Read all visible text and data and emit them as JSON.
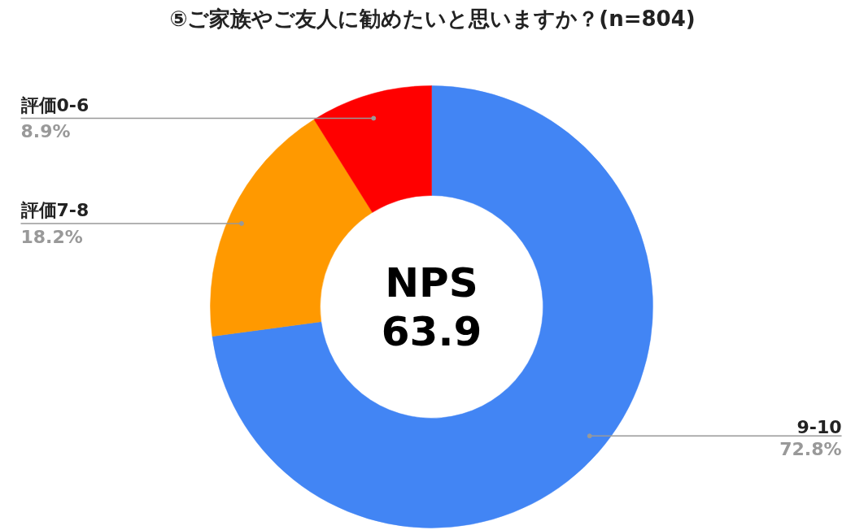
{
  "chart_data": {
    "type": "donut",
    "title": "⑤ご家族やご友人に勧めたいと思いますか？(n=804)",
    "categories": [
      "9-10",
      "評価7-8",
      "評価0-6"
    ],
    "values": [
      72.8,
      18.2,
      8.9
    ],
    "colors": [
      "#4285f4",
      "#ff9900",
      "#ff0000"
    ],
    "value_labels": [
      "72.8%",
      "18.2%",
      "8.9%"
    ],
    "annotations": [
      "NPS\n63.9"
    ]
  }
}
